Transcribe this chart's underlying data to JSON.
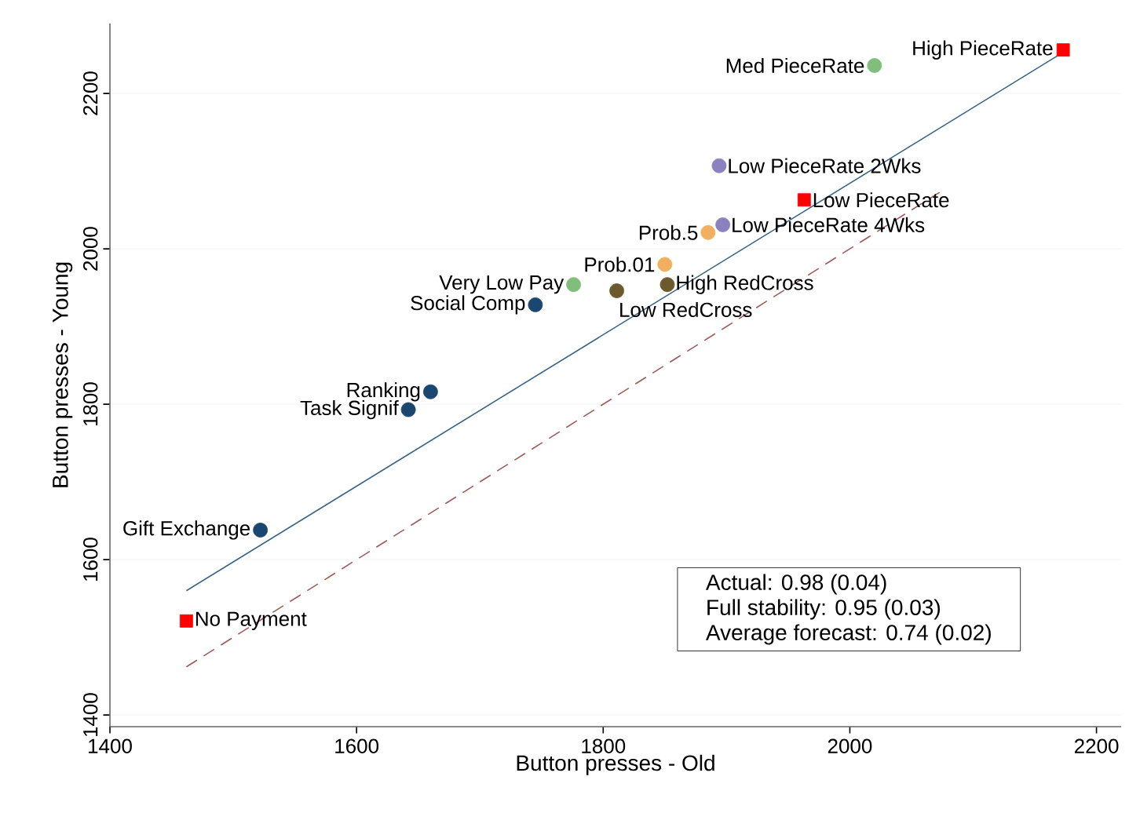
{
  "chart_data": {
    "type": "scatter",
    "xlabel": "Button presses - Old",
    "ylabel": "Button presses - Young",
    "xlim": [
      1400,
      2220
    ],
    "ylim": [
      1385,
      2290
    ],
    "xticks": [
      1400,
      1600,
      1800,
      2000,
      2200
    ],
    "yticks": [
      1400,
      1600,
      1800,
      2000,
      2200
    ],
    "grid": "y",
    "series": [
      {
        "type": "line",
        "color": "#3b6587",
        "line_style": "solid",
        "marker": "none",
        "x": [
          1462,
          2173
        ],
        "values": [
          1560,
          2253
        ]
      },
      {
        "type": "line",
        "color": "#a05a5a",
        "line_style": "dashed",
        "marker": "none",
        "x": [
          1462,
          2075
        ],
        "values": [
          1462,
          2075
        ]
      },
      {
        "color": "#ff0000",
        "marker": "square",
        "x": [
          2173,
          1963,
          1462
        ],
        "values": [
          2256,
          2063,
          1521
        ]
      },
      {
        "color": "#7fbf7b",
        "marker": "circle",
        "x": [
          2020,
          1776
        ],
        "values": [
          2236,
          1954
        ]
      },
      {
        "color": "#8b80c0",
        "marker": "circle",
        "x": [
          1894,
          1897
        ],
        "values": [
          2107,
          2031
        ]
      },
      {
        "color": "#f0b060",
        "marker": "circle",
        "x": [
          1885,
          1850
        ],
        "values": [
          2021,
          1980
        ]
      },
      {
        "color": "#6b5a2e",
        "marker": "circle",
        "x": [
          1852,
          1811
        ],
        "values": [
          1954,
          1946
        ]
      },
      {
        "color": "#1a476f",
        "marker": "circle",
        "x": [
          1745,
          1660,
          1642,
          1522
        ],
        "values": [
          1928,
          1816,
          1793,
          1638
        ]
      }
    ],
    "annotations": [
      {
        "text": "High PieceRate",
        "x": 2173,
        "y": 2256
      },
      {
        "text": "Med PieceRate",
        "x": 2020,
        "y": 2236
      },
      {
        "text": "Low PieceRate 2Wks",
        "x": 1894,
        "y": 2107
      },
      {
        "text": "Low PieceRate",
        "x": 1963,
        "y": 2063
      },
      {
        "text": "Low PieceRate 4Wks",
        "x": 1897,
        "y": 2031
      },
      {
        "text": "Prob.5",
        "x": 1885,
        "y": 2021
      },
      {
        "text": "Prob.01",
        "x": 1850,
        "y": 1980
      },
      {
        "text": "High RedCross",
        "x": 1852,
        "y": 1954
      },
      {
        "text": "Very Low Pay",
        "x": 1776,
        "y": 1954
      },
      {
        "text": "Low RedCross",
        "x": 1811,
        "y": 1946
      },
      {
        "text": "Social Comp",
        "x": 1745,
        "y": 1928
      },
      {
        "text": "Ranking",
        "x": 1660,
        "y": 1816
      },
      {
        "text": "Task Signif",
        "x": 1642,
        "y": 1793
      },
      {
        "text": "Gift Exchange",
        "x": 1522,
        "y": 1638
      },
      {
        "text": "No Payment",
        "x": 1462,
        "y": 1521
      },
      "Actual: 0.98 (0.04)",
      "Full stability: 0.95 (0.03)",
      "Average forecast: 0.74 (0.02)"
    ]
  }
}
